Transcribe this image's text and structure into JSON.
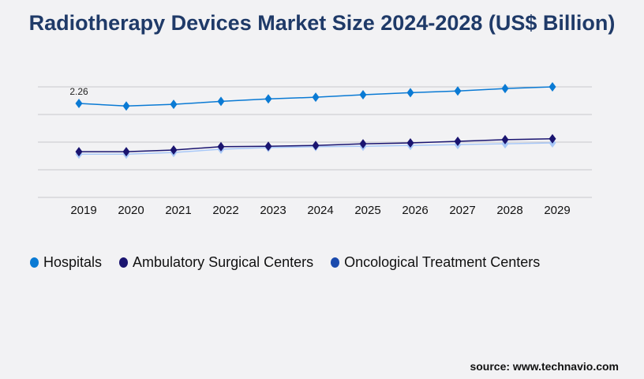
{
  "chart_data": {
    "type": "line",
    "title": "Radiotherapy Devices Market Size 2024-2028 (US$ Billion)",
    "categories": [
      "2019",
      "2020",
      "2021",
      "2022",
      "2023",
      "2024",
      "2025",
      "2026",
      "2027",
      "2028",
      "2029"
    ],
    "ylim": [
      0,
      2.66
    ],
    "grid": true,
    "legend_placement": "bottom-left",
    "series": [
      {
        "name": "Hospitals",
        "color": "#0a7ad4",
        "legend_color": "#0a7ad4",
        "values": [
          2.26,
          2.2,
          2.24,
          2.31,
          2.37,
          2.41,
          2.47,
          2.52,
          2.56,
          2.62,
          2.66
        ]
      },
      {
        "name": "Ambulatory Surgical Centers",
        "color": "#1a1470",
        "legend_color": "#1a1470",
        "values": [
          1.1,
          1.1,
          1.14,
          1.22,
          1.23,
          1.25,
          1.29,
          1.31,
          1.35,
          1.39,
          1.41
        ]
      },
      {
        "name": "Oncological Treatment Centers",
        "color": "#a8c8f8",
        "legend_color": "#1a4aad",
        "values": [
          1.04,
          1.04,
          1.08,
          1.16,
          1.2,
          1.22,
          1.23,
          1.25,
          1.27,
          1.29,
          1.31
        ]
      }
    ],
    "annotations": [
      {
        "series": 0,
        "index": 0,
        "text": "2.26"
      }
    ]
  },
  "source": "source: www.technavio.com"
}
